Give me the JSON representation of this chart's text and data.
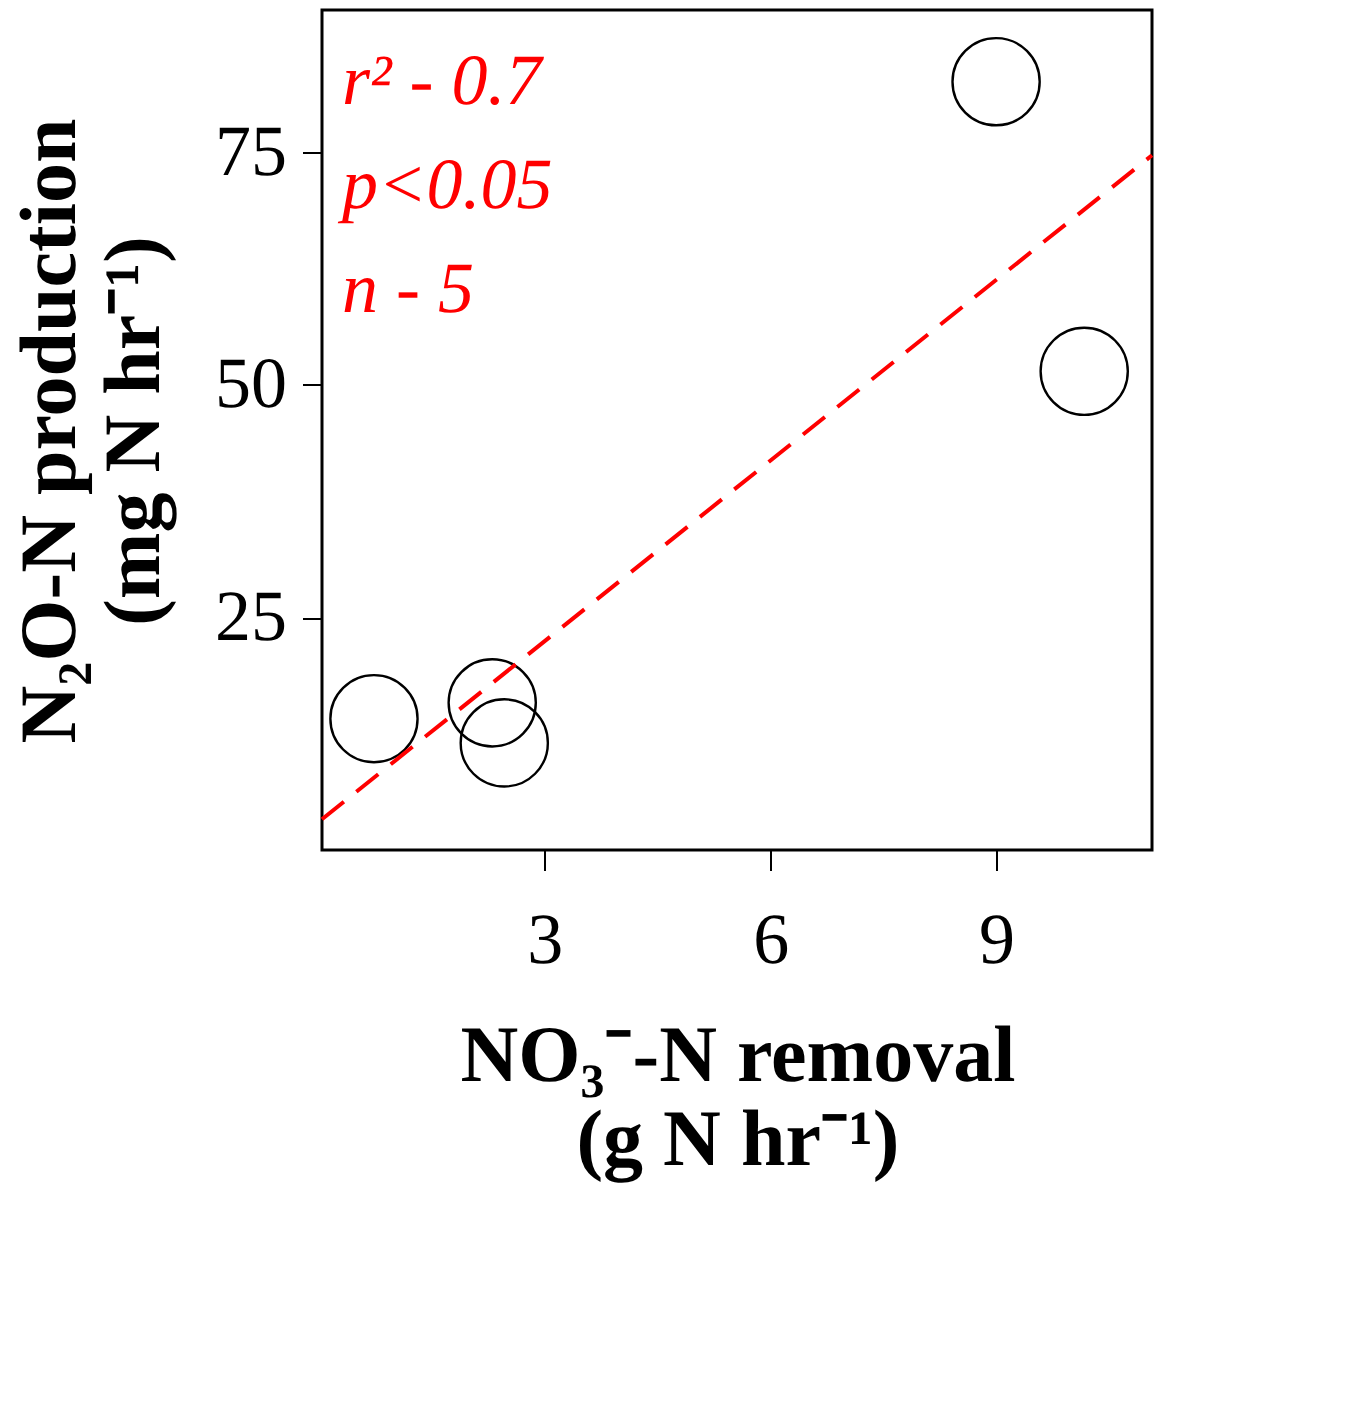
{
  "chart_data": {
    "type": "scatter",
    "xlabel": "NO₃⁻-N removal\n(g N hr⁻¹)",
    "ylabel": "N₂O-N production\n(mg N hr⁻¹)",
    "xlim": [
      0.05,
      11.07
    ],
    "ylim": [
      0,
      90.2
    ],
    "xticks": [
      3,
      6,
      9
    ],
    "yticks": [
      25,
      50,
      75
    ],
    "grid": false,
    "series": [
      {
        "type": "scatter",
        "marker": "circle",
        "color": "#000000",
        "x": [
          0.74,
          2.31,
          2.47,
          9.0,
          10.17
        ],
        "values": [
          14.1,
          15.8,
          11.5,
          82.5,
          51.4
        ]
      },
      {
        "type": "line",
        "marker": "none",
        "color": "#ff0000",
        "line_style": "dashed",
        "x": [
          0.05,
          11.07
        ],
        "values": [
          3.3,
          74.6
        ]
      }
    ],
    "annotations": [
      "r² - 0.7",
      "p<0.05",
      "n - 5"
    ]
  }
}
